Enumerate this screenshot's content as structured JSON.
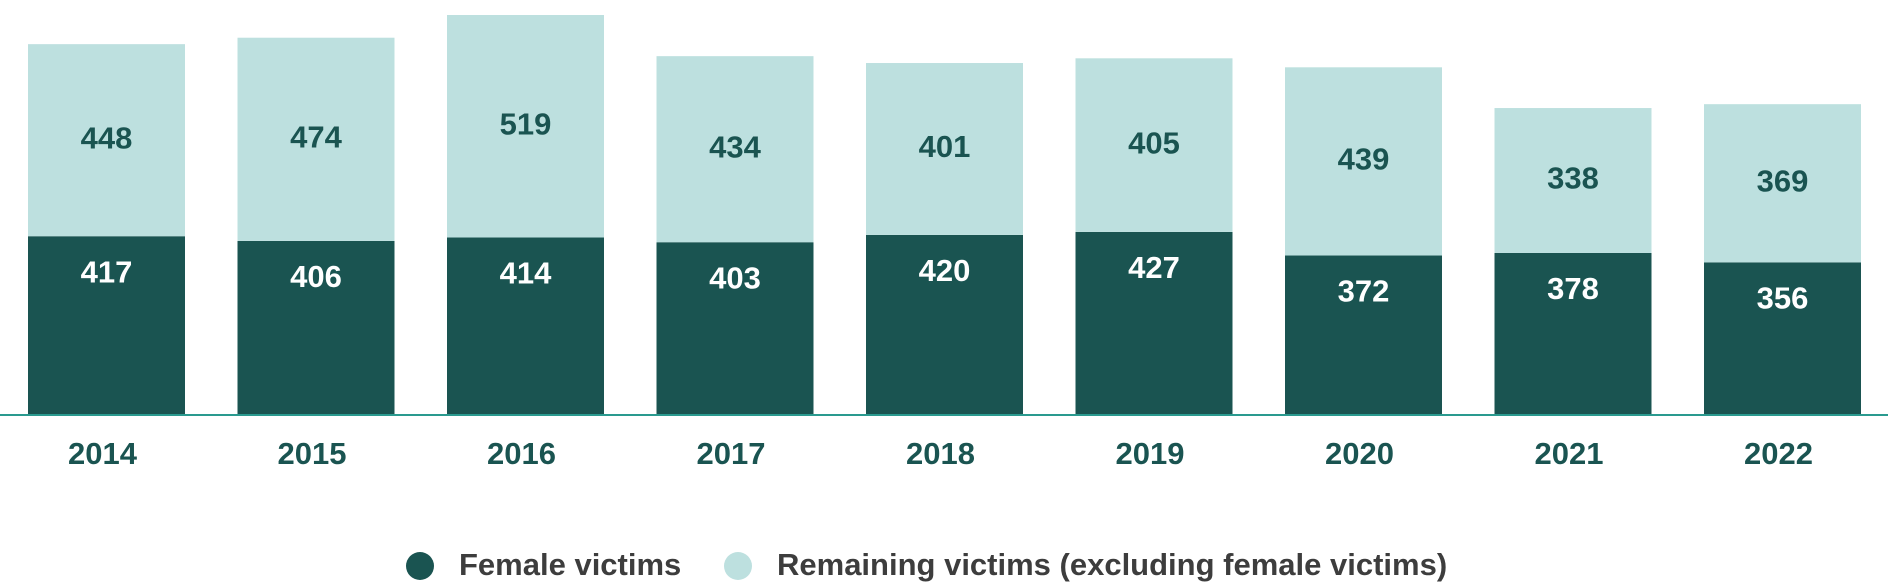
{
  "chart_data": {
    "type": "stacked-bar",
    "categories": [
      "2014",
      "2015",
      "2016",
      "2017",
      "2018",
      "2019",
      "2020",
      "2021",
      "2022"
    ],
    "series": [
      {
        "name": "Female victims",
        "color": "#1a5451",
        "values": [
          417,
          406,
          414,
          403,
          420,
          427,
          372,
          378,
          356
        ]
      },
      {
        "name": "Remaining victims (excluding female victims)",
        "color": "#bde0df",
        "values": [
          448,
          474,
          519,
          434,
          401,
          405,
          439,
          338,
          369
        ]
      }
    ]
  }
}
